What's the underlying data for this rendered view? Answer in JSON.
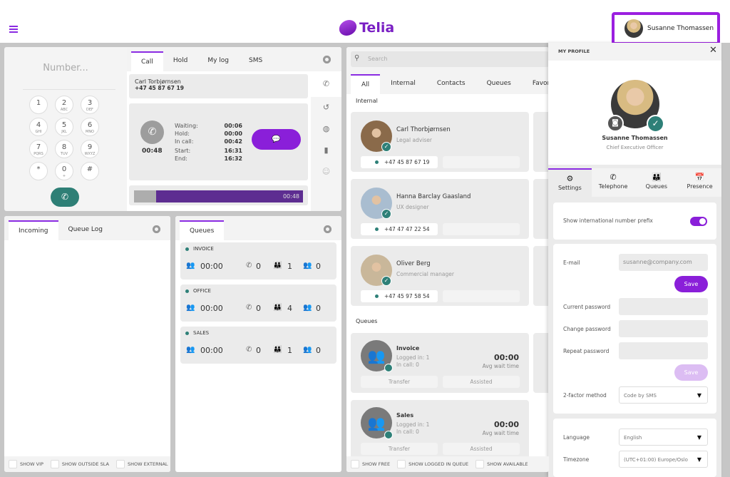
{
  "header": {
    "logo_text": "Telia",
    "user_name": "Susanne Thomassen",
    "brand_color": "#8a1fd9"
  },
  "dialer": {
    "placeholder": "Number...",
    "keys": [
      {
        "d": "1",
        "l": ""
      },
      {
        "d": "2",
        "l": "ABC"
      },
      {
        "d": "3",
        "l": "DEF"
      },
      {
        "d": "4",
        "l": "GHI"
      },
      {
        "d": "5",
        "l": "JKL"
      },
      {
        "d": "6",
        "l": "MNO"
      },
      {
        "d": "7",
        "l": "PQRS"
      },
      {
        "d": "8",
        "l": "TUV"
      },
      {
        "d": "9",
        "l": "WXYZ"
      },
      {
        "d": "*",
        "l": ""
      },
      {
        "d": "0",
        "l": "+"
      },
      {
        "d": "#",
        "l": ""
      }
    ]
  },
  "call": {
    "tabs": [
      "Call",
      "Hold",
      "My log",
      "SMS"
    ],
    "caller_name": "Carl Torbjørnsen",
    "caller_number": "+47 45 87 67 19",
    "duration": "00:48",
    "stats": [
      {
        "k": "Waiting:",
        "v": "00:06"
      },
      {
        "k": "Hold:",
        "v": "00:00"
      },
      {
        "k": "In call:",
        "v": "00:42"
      },
      {
        "k": "Start:",
        "v": "16:31"
      },
      {
        "k": "End:",
        "v": "16:32"
      }
    ],
    "progress_label": "00:48",
    "progress_fraction": 0.87
  },
  "incoming": {
    "tabs": [
      "Incoming",
      "Queue Log"
    ],
    "filters": [
      "SHOW VIP",
      "SHOW OUTSIDE SLA",
      "SHOW EXTERNAL"
    ]
  },
  "queues_panel": {
    "tab": "Queues",
    "items": [
      {
        "name": "INVOICE",
        "wait": "00:00",
        "calls": "0",
        "agents": "1",
        "free": "0"
      },
      {
        "name": "OFFICE",
        "wait": "00:00",
        "calls": "0",
        "agents": "4",
        "free": "0"
      },
      {
        "name": "SALES",
        "wait": "00:00",
        "calls": "0",
        "agents": "1",
        "free": "0"
      }
    ]
  },
  "contacts": {
    "search_placeholder": "Search",
    "tabs": [
      "All",
      "Internal",
      "Contacts",
      "Queues",
      "Favorites"
    ],
    "internal_heading": "Internal",
    "queues_heading": "Queues",
    "people": [
      {
        "name": "Carl Thorbjørnsen",
        "role": "Legal adviser",
        "phone": "+47 45 87 67 19"
      },
      {
        "name": "Hanna Barclay Gaasland",
        "role": "UX designer",
        "phone": "+47 47 47 22 54"
      },
      {
        "name": "Oliver Berg",
        "role": "Commercial manager",
        "phone": "+47 45 97 58 54"
      }
    ],
    "queues": [
      {
        "name": "Invoice",
        "logged": "Logged in: 1",
        "incall": "In call: 0",
        "wait": "00:00",
        "wait_label": "Avg wait time",
        "transfer": "Transfer",
        "assisted": "Assisted"
      },
      {
        "name": "Sales",
        "logged": "Logged in: 1",
        "incall": "In call: 0",
        "wait": "00:00",
        "wait_label": "Avg wait time",
        "transfer": "Transfer",
        "assisted": "Assisted"
      }
    ],
    "filters": [
      "SHOW FREE",
      "SHOW LOGGED IN QUEUE",
      "SHOW AVAILABLE"
    ]
  },
  "profile": {
    "title": "MY PROFILE",
    "name": "Susanne Thomassen",
    "role": "Chief Executive Officer",
    "tabs": [
      "Settings",
      "Telephone",
      "Queues",
      "Presence"
    ],
    "intl_prefix_label": "Show international number prefix",
    "intl_prefix_on": true,
    "email_label": "E-mail",
    "email_value": "susanne@company.com",
    "save": "Save",
    "current_pw": "Current password",
    "change_pw": "Change password",
    "repeat_pw": "Repeat password",
    "twofa_label": "2-factor method",
    "twofa_value": "Code by SMS",
    "language_label": "Language",
    "language_value": "English",
    "timezone_label": "Timezone",
    "timezone_value": "(UTC+01:00) Europe/Oslo"
  }
}
